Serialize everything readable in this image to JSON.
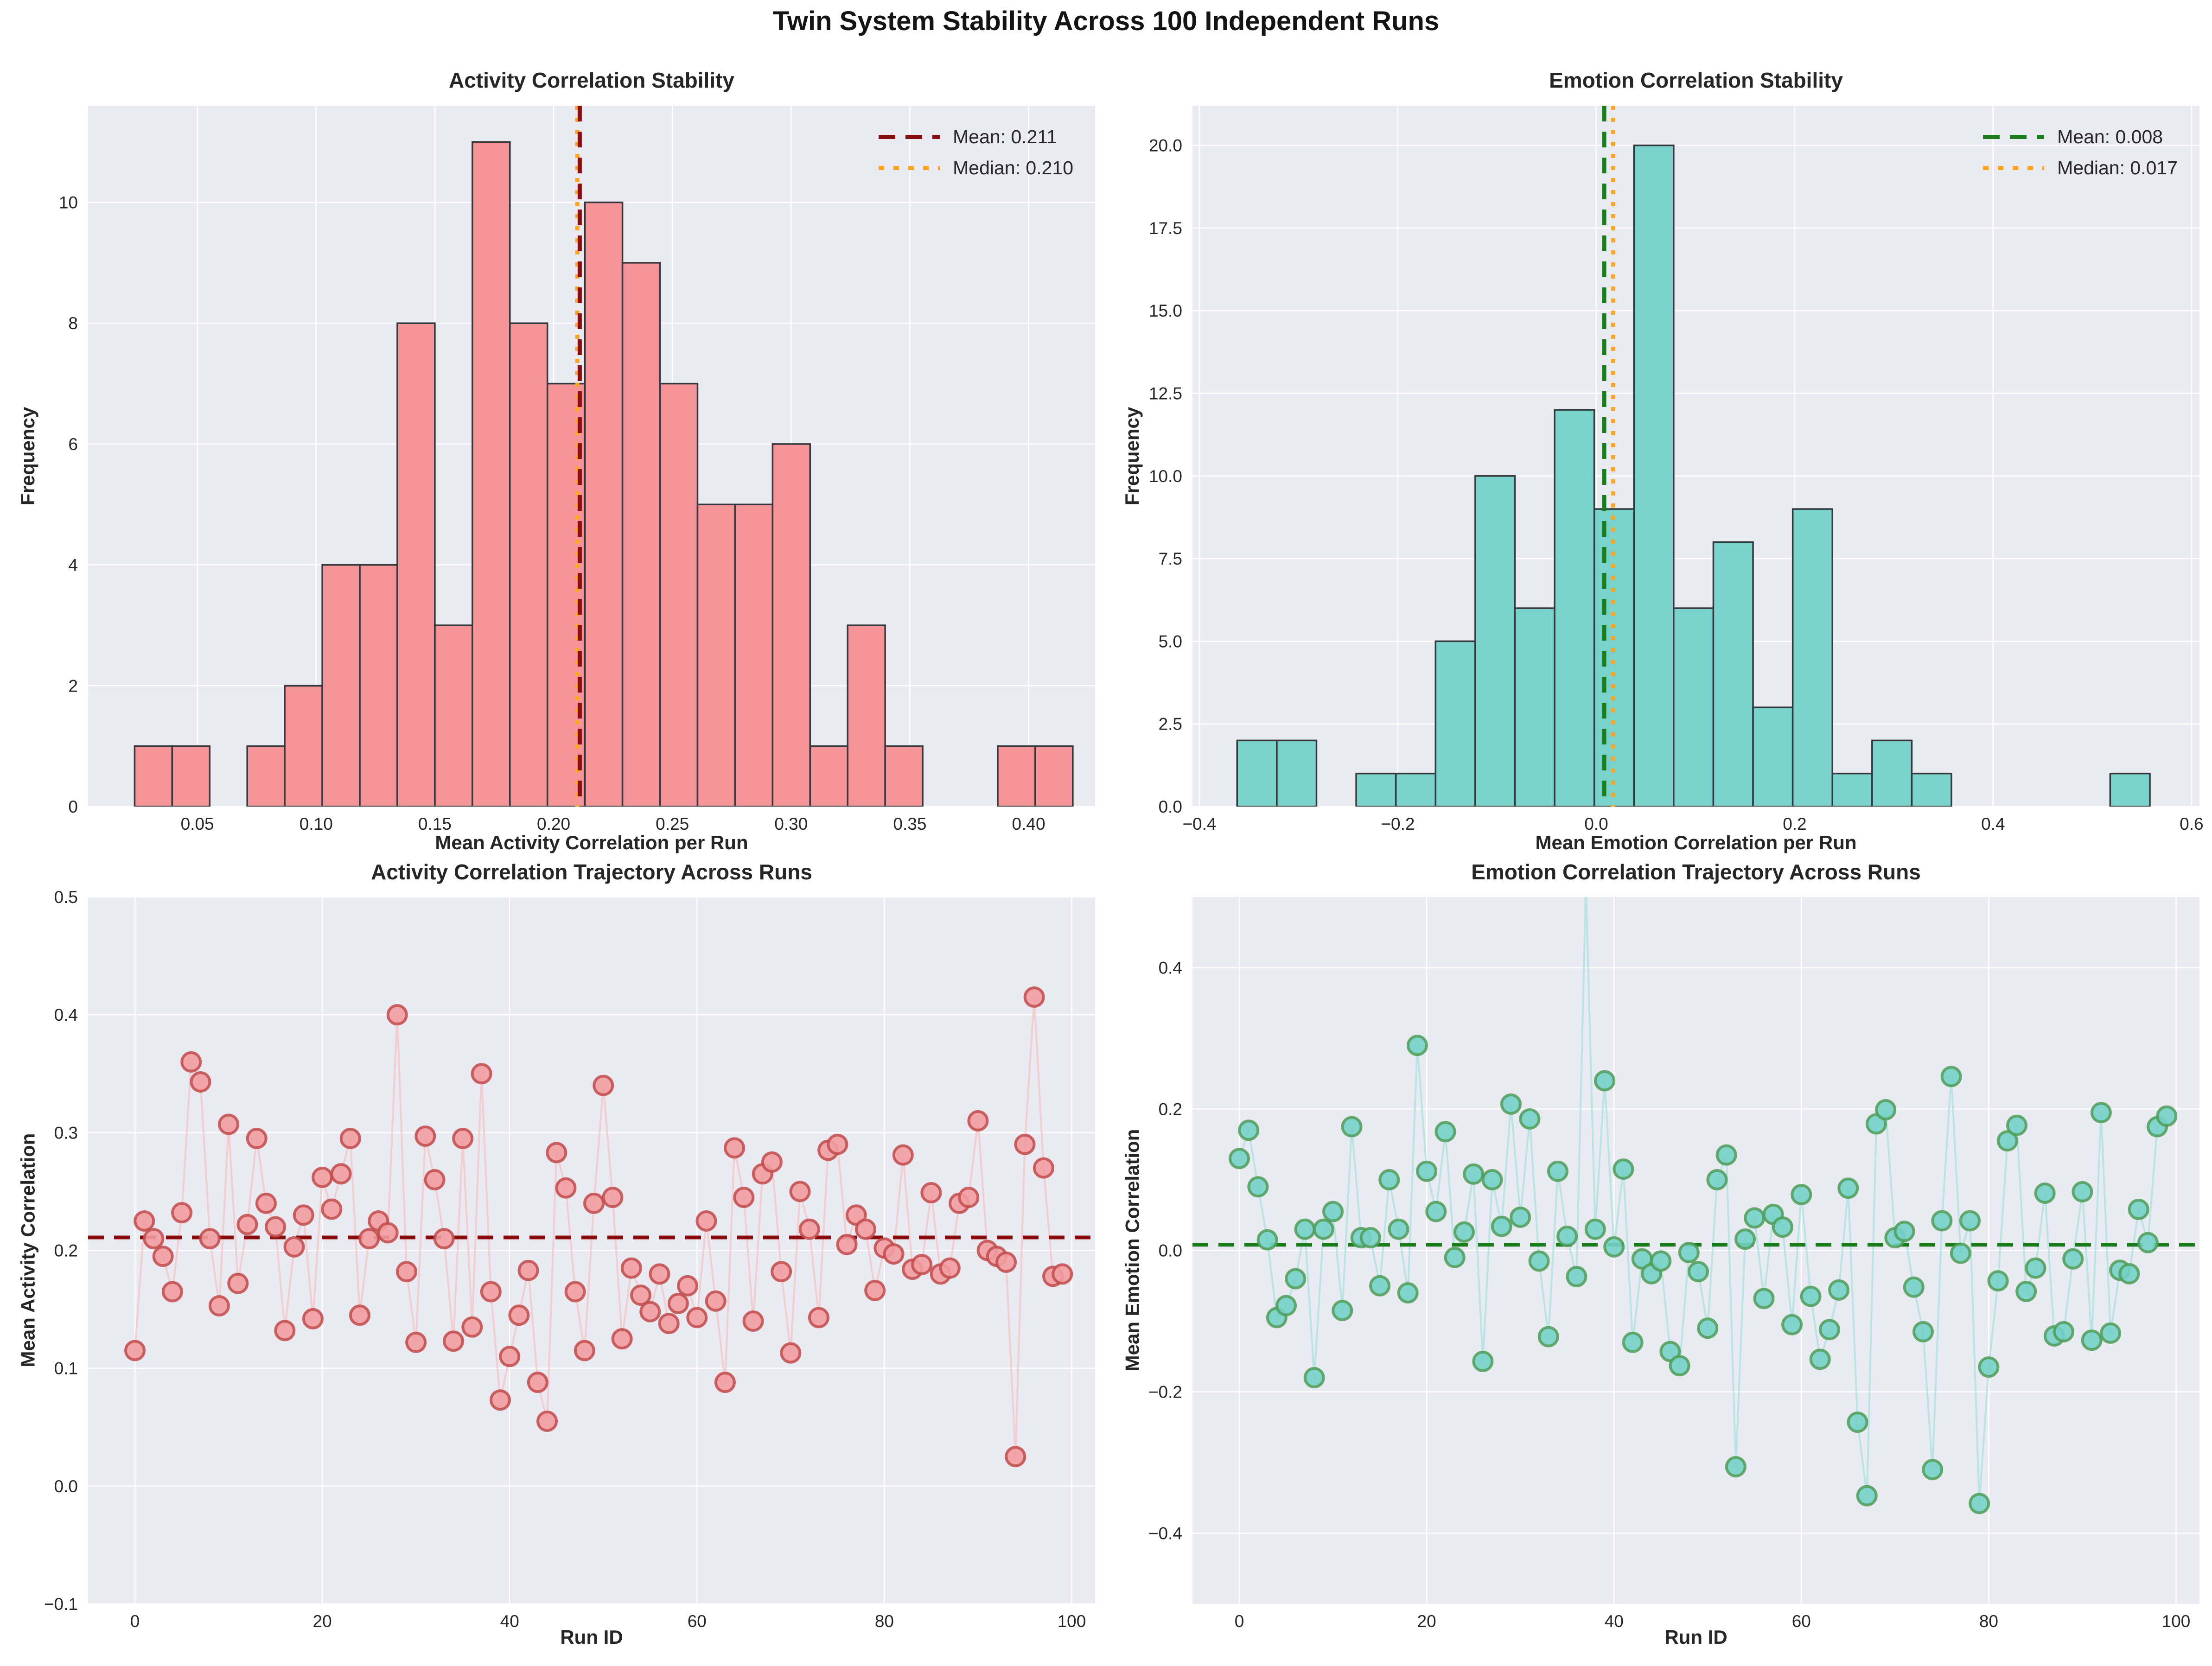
{
  "figure": {
    "title": "Twin System Stability Across 100 Independent Runs"
  },
  "palette": {
    "plot_background": "#e9eaf2",
    "gridline": "#ffffff",
    "text_dark": "#262626",
    "activity_bar": "#f49398",
    "emotion_bar": "#7ad2cc",
    "bar_edge": "#35393b",
    "activity_mean_line": "#8b0f0f",
    "emotion_mean_line": "#1a7c1a",
    "median_line": "#ffa51e",
    "activity_marker_fill": "#f29da1",
    "activity_marker_edge": "#c24b4b",
    "activity_trend_line": "#f5c4c6",
    "emotion_marker_fill": "#74d2c8",
    "emotion_marker_edge": "#4f9e57",
    "emotion_trend_line": "#a9e1dd"
  },
  "chart_data": [
    {
      "type": "bar",
      "subtype": "histogram",
      "title": "Activity Correlation Stability",
      "xlabel": "Mean Activity Correlation per Run",
      "ylabel": "Frequency",
      "legend": [
        "Mean: 0.211",
        "Median: 0.210"
      ],
      "legend_position": "upper-right",
      "grid": true,
      "mean": 0.211,
      "median": 0.21,
      "bin_start": 0.0236,
      "bin_width": 0.0158,
      "counts": [
        1,
        1,
        0,
        1,
        2,
        4,
        4,
        8,
        3,
        11,
        8,
        7,
        10,
        9,
        7,
        5,
        5,
        6,
        1,
        3,
        1,
        0,
        0,
        1,
        1
      ],
      "xlim": [
        0.004,
        0.428
      ],
      "ylim": [
        0,
        11.6
      ],
      "xticks": [
        {
          "v": 0.05,
          "l": "0.05"
        },
        {
          "v": 0.1,
          "l": "0.10"
        },
        {
          "v": 0.15,
          "l": "0.15"
        },
        {
          "v": 0.2,
          "l": "0.20"
        },
        {
          "v": 0.25,
          "l": "0.25"
        },
        {
          "v": 0.3,
          "l": "0.30"
        },
        {
          "v": 0.35,
          "l": "0.35"
        },
        {
          "v": 0.4,
          "l": "0.40"
        }
      ],
      "yticks": [
        {
          "v": 0,
          "l": "0"
        },
        {
          "v": 2,
          "l": "2"
        },
        {
          "v": 4,
          "l": "4"
        },
        {
          "v": 6,
          "l": "6"
        },
        {
          "v": 8,
          "l": "8"
        },
        {
          "v": 10,
          "l": "10"
        }
      ],
      "colors": {
        "bar": "#f49398",
        "edge": "#35393b",
        "mean": "#8b0f0f",
        "median": "#ffa51e"
      }
    },
    {
      "type": "bar",
      "subtype": "histogram",
      "title": "Emotion Correlation Stability",
      "xlabel": "Mean Emotion Correlation per Run",
      "ylabel": "Frequency",
      "legend": [
        "Mean: 0.008",
        "Median: 0.017"
      ],
      "legend_position": "upper-right",
      "grid": true,
      "mean": 0.008,
      "median": 0.017,
      "bin_start": -0.362,
      "bin_width": 0.04,
      "counts": [
        2,
        2,
        0,
        1,
        1,
        5,
        10,
        6,
        12,
        9,
        20,
        6,
        8,
        3,
        9,
        1,
        2,
        1,
        0,
        0,
        0,
        0,
        1
      ],
      "xlim": [
        -0.407,
        0.608
      ],
      "ylim": [
        0,
        21.2
      ],
      "xticks": [
        {
          "v": -0.4,
          "l": "−0.4"
        },
        {
          "v": -0.2,
          "l": "−0.2"
        },
        {
          "v": 0.0,
          "l": "0.0"
        },
        {
          "v": 0.2,
          "l": "0.2"
        },
        {
          "v": 0.4,
          "l": "0.4"
        },
        {
          "v": 0.6,
          "l": "0.6"
        }
      ],
      "yticks": [
        {
          "v": 0,
          "l": "0.0"
        },
        {
          "v": 2.5,
          "l": "2.5"
        },
        {
          "v": 5,
          "l": "5.0"
        },
        {
          "v": 7.5,
          "l": "7.5"
        },
        {
          "v": 10,
          "l": "10.0"
        },
        {
          "v": 12.5,
          "l": "12.5"
        },
        {
          "v": 15,
          "l": "15.0"
        },
        {
          "v": 17.5,
          "l": "17.5"
        },
        {
          "v": 20,
          "l": "20.0"
        }
      ],
      "colors": {
        "bar": "#7ad2cc",
        "edge": "#35393b",
        "mean": "#1a7c1a",
        "median": "#ffa51e"
      }
    },
    {
      "type": "line",
      "subtype": "scatter_trajectory",
      "title": "Activity Correlation Trajectory Across Runs",
      "xlabel": "Run ID",
      "ylabel": "Mean Activity Correlation",
      "grid": true,
      "mean": 0.211,
      "x_is_index": true,
      "values": [
        0.115,
        0.225,
        0.21,
        0.195,
        0.165,
        0.232,
        0.36,
        0.343,
        0.21,
        0.153,
        0.307,
        0.172,
        0.222,
        0.295,
        0.24,
        0.22,
        0.132,
        0.203,
        0.23,
        0.142,
        0.262,
        0.235,
        0.265,
        0.295,
        0.145,
        0.21,
        0.225,
        0.215,
        0.4,
        0.182,
        0.122,
        0.297,
        0.26,
        0.21,
        0.123,
        0.295,
        0.135,
        0.35,
        0.165,
        0.073,
        0.11,
        0.145,
        0.183,
        0.088,
        0.055,
        0.283,
        0.253,
        0.165,
        0.115,
        0.24,
        0.34,
        0.245,
        0.125,
        0.185,
        0.162,
        0.148,
        0.18,
        0.138,
        0.155,
        0.17,
        0.143,
        0.225,
        0.157,
        0.088,
        0.287,
        0.245,
        0.14,
        0.265,
        0.275,
        0.182,
        0.113,
        0.25,
        0.218,
        0.143,
        0.285,
        0.29,
        0.205,
        0.23,
        0.218,
        0.166,
        0.202,
        0.197,
        0.281,
        0.184,
        0.188,
        0.249,
        0.18,
        0.185,
        0.24,
        0.245,
        0.31,
        0.2,
        0.195,
        0.19,
        0.025,
        0.29,
        0.415,
        0.27,
        0.178,
        0.18
      ],
      "xlim": [
        -5,
        102.5
      ],
      "ylim": [
        -0.1,
        0.5
      ],
      "xticks": [
        {
          "v": 0,
          "l": "0"
        },
        {
          "v": 20,
          "l": "20"
        },
        {
          "v": 40,
          "l": "40"
        },
        {
          "v": 60,
          "l": "60"
        },
        {
          "v": 80,
          "l": "80"
        },
        {
          "v": 100,
          "l": "100"
        }
      ],
      "yticks": [
        {
          "v": 0.5,
          "l": "0.5"
        },
        {
          "v": 0.4,
          "l": "0.4"
        },
        {
          "v": 0.3,
          "l": "0.3"
        },
        {
          "v": 0.2,
          "l": "0.2"
        },
        {
          "v": 0.1,
          "l": "0.1"
        },
        {
          "v": 0.0,
          "l": "0.0"
        },
        {
          "v": -0.1,
          "l": "−0.1"
        }
      ],
      "colors": {
        "marker": "#f29da1",
        "edge": "#c24b4b",
        "line": "#f5c4c6",
        "mean": "#8b0f0f"
      }
    },
    {
      "type": "line",
      "subtype": "scatter_trajectory",
      "title": "Emotion Correlation Trajectory Across Runs",
      "xlabel": "Run ID",
      "ylabel": "Mean Emotion Correlation",
      "grid": true,
      "mean": 0.008,
      "x_is_index": true,
      "values": [
        0.13,
        0.17,
        0.09,
        0.015,
        -0.095,
        -0.078,
        -0.04,
        0.03,
        -0.18,
        0.03,
        0.055,
        -0.085,
        0.175,
        0.018,
        0.018,
        -0.05,
        0.1,
        0.03,
        -0.06,
        0.29,
        0.112,
        0.055,
        0.168,
        -0.01,
        0.026,
        0.108,
        -0.157,
        0.1,
        0.034,
        0.207,
        0.047,
        0.186,
        -0.015,
        -0.122,
        0.112,
        0.02,
        -0.037,
        0.52,
        0.03,
        0.24,
        0.005,
        0.115,
        -0.13,
        -0.012,
        -0.033,
        -0.015,
        -0.143,
        -0.163,
        -0.003,
        -0.03,
        -0.11,
        0.1,
        0.135,
        -0.306,
        0.016,
        0.046,
        -0.068,
        0.051,
        0.033,
        -0.105,
        0.079,
        -0.065,
        -0.154,
        -0.112,
        -0.056,
        0.088,
        -0.243,
        -0.347,
        0.179,
        0.199,
        0.018,
        0.027,
        -0.052,
        -0.115,
        -0.31,
        0.042,
        0.246,
        -0.004,
        0.042,
        -0.358,
        -0.165,
        -0.043,
        0.155,
        0.177,
        -0.058,
        -0.025,
        0.081,
        -0.121,
        -0.115,
        -0.012,
        0.083,
        -0.127,
        0.195,
        -0.117,
        -0.028,
        -0.033,
        0.058,
        0.011,
        0.175,
        0.19
      ],
      "xlim": [
        -5,
        102.5
      ],
      "ylim": [
        -0.5,
        0.5
      ],
      "xticks": [
        {
          "v": 0,
          "l": "0"
        },
        {
          "v": 20,
          "l": "20"
        },
        {
          "v": 40,
          "l": "40"
        },
        {
          "v": 60,
          "l": "60"
        },
        {
          "v": 80,
          "l": "80"
        },
        {
          "v": 100,
          "l": "100"
        }
      ],
      "yticks": [
        {
          "v": 0.4,
          "l": "0.4"
        },
        {
          "v": 0.2,
          "l": "0.2"
        },
        {
          "v": 0.0,
          "l": "0.0"
        },
        {
          "v": -0.2,
          "l": "−0.2"
        },
        {
          "v": -0.4,
          "l": "−0.4"
        }
      ],
      "colors": {
        "marker": "#74d2c8",
        "edge": "#4f9e57",
        "line": "#a9e1dd",
        "mean": "#1a7c1a"
      }
    }
  ]
}
